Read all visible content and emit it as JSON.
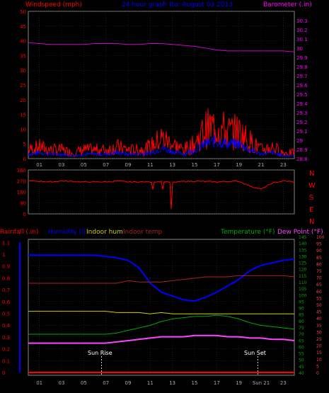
{
  "header": {
    "wind_label": "Windspeed (mph)",
    "title": "24 hour graph (to:  August 03 2013",
    "baro_label": "Barometer (.in)"
  },
  "panel3_header": {
    "rain_label": "Rainfall (.in)",
    "humidity_label": "Humidity (l)",
    "indoor_hum_label": "Indoor hum",
    "indoor_temp_label": "Indoor temp",
    "temp_label": "Temperature (°F)",
    "dew_label": "Dew Point (°F)"
  },
  "compass": [
    "N",
    "W",
    "S",
    "E",
    "N"
  ],
  "markers": {
    "sunrise": "Sun Rise",
    "sunset": "Sun Set"
  },
  "hour_labels": [
    "01",
    "03",
    "05",
    "07",
    "09",
    "11",
    "13",
    "15",
    "17",
    "19",
    "21",
    "23"
  ],
  "hour_labels_bottom": [
    "01",
    "03",
    "05",
    "07",
    "09",
    "11",
    "13",
    "15",
    "17",
    "19",
    "Sun 21",
    "23"
  ],
  "colors": {
    "windspeed": "#ff0000",
    "windgust": "#0000ff",
    "barometer": "#cc00cc",
    "wind_dir": "#ff0000",
    "humidity": "#0000ff",
    "indoor_hum": "#cccc00",
    "indoor_temp": "#aa2222",
    "temperature": "#00aa00",
    "dew_point": "#ff44ff",
    "axis_left": "#ff0000",
    "axis_right": "#ff00ff"
  },
  "chart_data": [
    {
      "type": "line",
      "title": "24 hour graph (to:  August 03 2013",
      "ylabel": "Windspeed (mph)",
      "y2label": "Barometer (.in)",
      "ylim": [
        0,
        50
      ],
      "y_ticks": [
        0,
        5,
        10,
        15,
        20,
        25,
        30,
        35,
        40,
        45,
        50
      ],
      "y2lim": [
        28.8,
        30.4
      ],
      "y2_ticks": [
        "28.8",
        "28.9",
        "29",
        "29.1",
        "29.2",
        "29.3",
        "29.4",
        "29.5",
        "29.6",
        "29.7",
        "29.8",
        "29.9",
        "30",
        "30.1",
        "30.2",
        "30.3"
      ],
      "x": [
        0,
        1,
        2,
        3,
        4,
        5,
        6,
        7,
        8,
        9,
        10,
        11,
        12,
        13,
        14,
        15,
        16,
        17,
        18,
        19,
        20,
        21,
        22,
        23,
        24
      ],
      "series": [
        {
          "name": "Windspeed (mph)",
          "axis": "left",
          "values": [
            3,
            4,
            3,
            3,
            2,
            3,
            3,
            3,
            4,
            3,
            3,
            4,
            7,
            5,
            3,
            5,
            10,
            11,
            9,
            9,
            6,
            3,
            4,
            2,
            2
          ]
        },
        {
          "name": "Gust",
          "axis": "left",
          "values": [
            1.5,
            2,
            1.5,
            1.5,
            1,
            1.5,
            1.5,
            1.5,
            2,
            1.5,
            1.5,
            2,
            3.5,
            2.5,
            1.5,
            3,
            5,
            6,
            5,
            5,
            3,
            1.5,
            2,
            1,
            1
          ]
        },
        {
          "name": "Barometer (.in)",
          "axis": "right",
          "values": [
            30.06,
            30.05,
            30.04,
            30.04,
            30.04,
            30.04,
            30.05,
            30.05,
            30.05,
            30.04,
            30.04,
            30.05,
            30.05,
            30.04,
            30.03,
            30.02,
            30.0,
            29.98,
            29.97,
            29.97,
            29.97,
            29.97,
            29.97,
            29.97,
            29.96
          ]
        }
      ]
    },
    {
      "type": "line",
      "ylabel": "Wind direction",
      "ylim": [
        0,
        360
      ],
      "y_ticks": [
        0,
        90,
        180,
        270,
        360
      ],
      "x": [
        0,
        1,
        2,
        3,
        4,
        5,
        6,
        7,
        8,
        9,
        10,
        11,
        12,
        13,
        14,
        15,
        16,
        17,
        18,
        19,
        20,
        21,
        22,
        23,
        24
      ],
      "series": [
        {
          "name": "Wind direction",
          "values": [
            268,
            268,
            262,
            270,
            266,
            262,
            262,
            263,
            268,
            262,
            262,
            262,
            265,
            258,
            266,
            268,
            265,
            262,
            266,
            268,
            228,
            202,
            252,
            270,
            262
          ]
        }
      ]
    },
    {
      "type": "line",
      "ylabel": "Rainfall (.in)",
      "ylim": [
        0,
        1.0
      ],
      "y_ticks": [
        "0",
        "0.1",
        "0.2",
        "0.3",
        "0.4",
        "0.5",
        "0.6",
        "0.7",
        "0.8",
        "0.9",
        "1",
        "1.1"
      ],
      "y2label": "Temperature (°F)",
      "y2_ticks": [
        "40",
        "45",
        "50",
        "55",
        "60",
        "65",
        "70",
        "75",
        "80",
        "85",
        "90",
        "95",
        "100",
        "105",
        "110",
        "115",
        "120",
        "125",
        "130",
        "135",
        "140",
        "145"
      ],
      "y3label": "Dew Point (°F)",
      "y3_ticks": [
        "0",
        "5",
        "10",
        "15",
        "20",
        "25",
        "30",
        "35",
        "40",
        "45",
        "50",
        "55",
        "60",
        "65",
        "70",
        "75",
        "80",
        "85",
        "90",
        "95",
        "100"
      ],
      "x": [
        0,
        1,
        2,
        3,
        4,
        5,
        6,
        7,
        8,
        9,
        10,
        11,
        12,
        13,
        14,
        15,
        16,
        17,
        18,
        19,
        20,
        21,
        22,
        23,
        24
      ],
      "series": [
        {
          "name": "Humidity (l)",
          "values": [
            92,
            92,
            92,
            92,
            92,
            92,
            92,
            91,
            90,
            88,
            82,
            70,
            63,
            60,
            57,
            56,
            59,
            63,
            68,
            73,
            80,
            84,
            86,
            88,
            89
          ]
        },
        {
          "name": "Indoor hum",
          "values": [
            48,
            48,
            48,
            48,
            48,
            48,
            48,
            48,
            47,
            47,
            47,
            46,
            47,
            46,
            46,
            46,
            46,
            46,
            46,
            46,
            46,
            46,
            46,
            46,
            46
          ]
        },
        {
          "name": "Indoor temp",
          "values": [
            70,
            70,
            70,
            70,
            70,
            70,
            70,
            70,
            70,
            72,
            71,
            71,
            71,
            72,
            73,
            74,
            75,
            75,
            75,
            76,
            76,
            76,
            76,
            76,
            75
          ]
        },
        {
          "name": "Temperature (°F)",
          "values": [
            30,
            30,
            30,
            30,
            30,
            30,
            30,
            30,
            31,
            33,
            35,
            37,
            40,
            42,
            43,
            44,
            44,
            45,
            44,
            42,
            39,
            37,
            36,
            35,
            34
          ]
        },
        {
          "name": "Dew Point (°F)",
          "values": [
            23,
            23,
            23,
            23,
            23,
            23,
            23,
            23,
            24,
            25,
            26,
            27,
            28,
            28,
            28,
            29,
            29,
            29,
            28,
            28,
            27,
            27,
            26,
            26,
            25
          ]
        },
        {
          "name": "Rainfall (.in)",
          "values": [
            0,
            0,
            0,
            0,
            0,
            0,
            0,
            0,
            0,
            0,
            0,
            0,
            0,
            0,
            0,
            0,
            0,
            0,
            0,
            0,
            0,
            0,
            0,
            0,
            0
          ]
        }
      ]
    }
  ]
}
